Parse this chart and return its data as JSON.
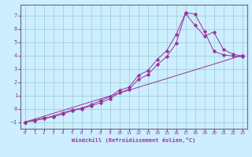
{
  "background_color": "#cceeff",
  "grid_color": "#99cccc",
  "line_color": "#993399",
  "spine_color": "#666688",
  "xlim": [
    -0.5,
    23.5
  ],
  "ylim": [
    -1.5,
    7.8
  ],
  "xlabel": "Windchill (Refroidissement éolien,°C)",
  "yticks": [
    -1,
    0,
    1,
    2,
    3,
    4,
    5,
    6,
    7
  ],
  "xticks": [
    0,
    1,
    2,
    3,
    4,
    5,
    6,
    7,
    8,
    9,
    10,
    11,
    12,
    13,
    14,
    15,
    16,
    17,
    18,
    19,
    20,
    21,
    22,
    23
  ],
  "series": [
    {
      "x": [
        0,
        1,
        2,
        3,
        4,
        5,
        6,
        7,
        8,
        9,
        10,
        11,
        12,
        13,
        14,
        15,
        16,
        17,
        18,
        19,
        20,
        21,
        22,
        23
      ],
      "y": [
        -1.0,
        -0.85,
        -0.7,
        -0.55,
        -0.3,
        -0.1,
        0.05,
        0.3,
        0.6,
        0.9,
        1.4,
        1.6,
        2.5,
        2.85,
        3.7,
        4.35,
        5.55,
        7.2,
        7.1,
        5.8,
        4.3,
        4.05,
        3.95,
        3.9
      ]
    },
    {
      "x": [
        0,
        1,
        2,
        3,
        4,
        5,
        6,
        7,
        8,
        9,
        10,
        11,
        12,
        13,
        14,
        15,
        16,
        17,
        18,
        19,
        20,
        21,
        22,
        23
      ],
      "y": [
        -1.0,
        -0.9,
        -0.75,
        -0.6,
        -0.4,
        -0.15,
        0.0,
        0.2,
        0.45,
        0.75,
        1.2,
        1.45,
        2.2,
        2.55,
        3.3,
        3.9,
        4.9,
        7.15,
        6.25,
        5.45,
        5.75,
        4.45,
        4.1,
        3.95
      ]
    },
    {
      "x": [
        0,
        23
      ],
      "y": [
        -1.0,
        4.0
      ]
    }
  ]
}
